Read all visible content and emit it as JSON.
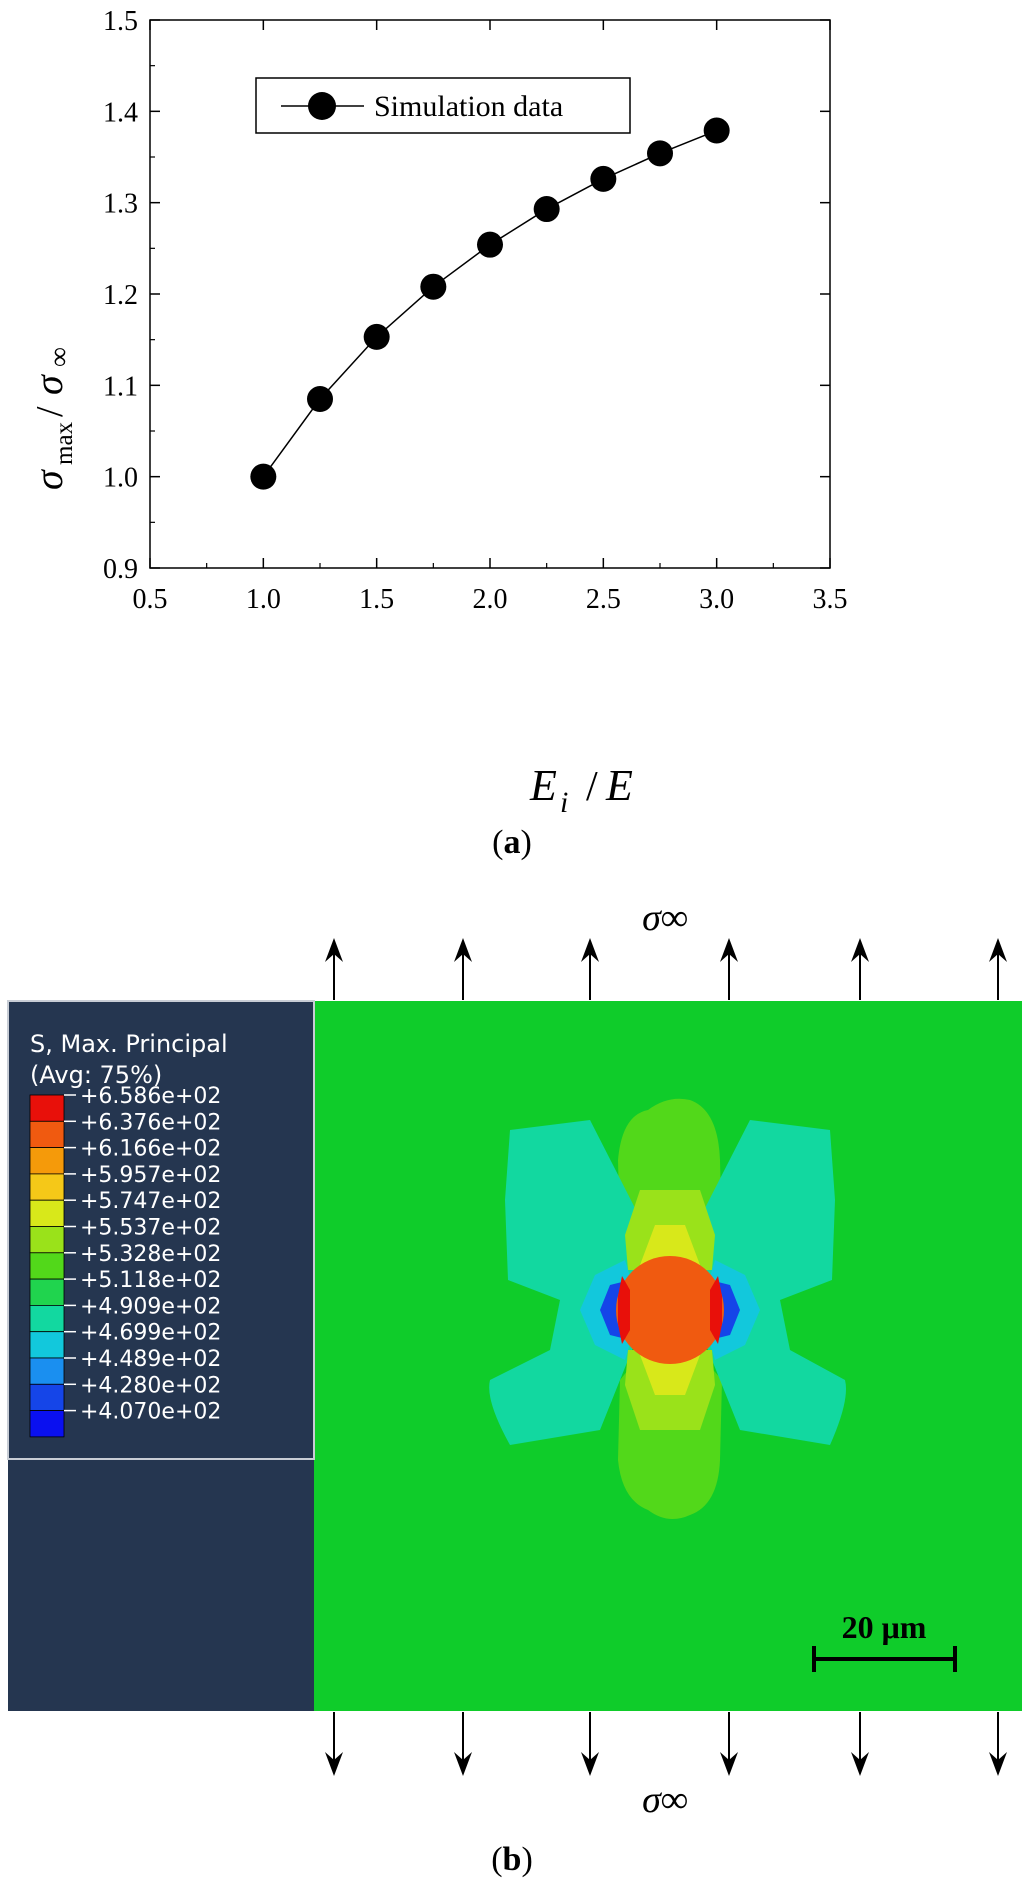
{
  "figure": {
    "panel_a_label": "a",
    "panel_b_label": "b"
  },
  "chart_data": {
    "type": "line",
    "title": "",
    "xlabel": "E_i / E",
    "ylabel": "σmax / σ∞",
    "xlim": [
      0.5,
      3.5
    ],
    "ylim": [
      0.9,
      1.5
    ],
    "xticks": [
      "0.5",
      "1.0",
      "1.5",
      "2.0",
      "2.5",
      "3.0",
      "3.5"
    ],
    "yticks": [
      "0.9",
      "1.0",
      "1.1",
      "1.2",
      "1.3",
      "1.4",
      "1.5"
    ],
    "grid": false,
    "legend_position": "top-left",
    "series": [
      {
        "name": "Simulation data",
        "x": [
          1.0,
          1.25,
          1.5,
          1.75,
          2.0,
          2.25,
          2.5,
          2.75,
          3.0
        ],
        "y": [
          1.0,
          1.085,
          1.153,
          1.208,
          1.254,
          1.293,
          1.326,
          1.354,
          1.379
        ],
        "marker": "filled-circle",
        "color": "#000000"
      }
    ]
  },
  "contour": {
    "stress_label": "σ∞",
    "legend_title_1": "S, Max. Principal",
    "legend_title_2": "(Avg: 75%)",
    "legend_values": [
      "+6.586e+02",
      "+6.376e+02",
      "+6.166e+02",
      "+5.957e+02",
      "+5.747e+02",
      "+5.537e+02",
      "+5.328e+02",
      "+5.118e+02",
      "+4.909e+02",
      "+4.699e+02",
      "+4.489e+02",
      "+4.280e+02",
      "+4.070e+02"
    ],
    "legend_colors": [
      "#e8100a",
      "#f05a10",
      "#f59a0a",
      "#f5c818",
      "#d8e81a",
      "#9ae21a",
      "#52d81a",
      "#20d44e",
      "#12d8a0",
      "#12c8dc",
      "#1a8ff0",
      "#1545e8",
      "#0a10f0"
    ],
    "scale_bar_label": "20 μm",
    "panel_bg": "#253650",
    "field_color": "#0fcc2a"
  }
}
